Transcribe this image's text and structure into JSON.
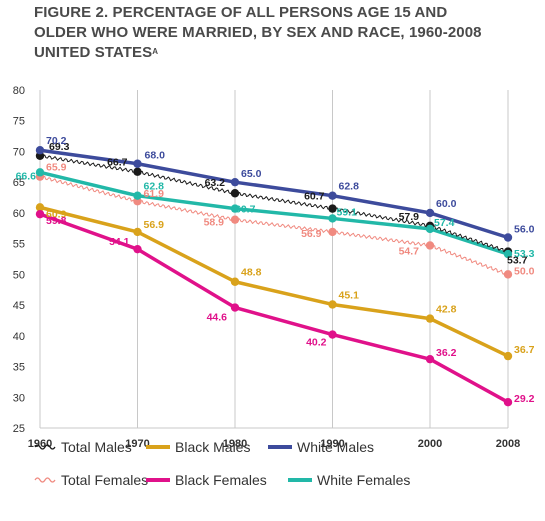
{
  "figure": {
    "title_line1": "FIGURE 2.  PERCENTAGE OF ALL PERSONS AGE 15 AND",
    "title_line2": "OLDER WHO WERE MARRIED, BY SEX AND RACE, 1960-2008",
    "title_line3": "UNITED STATES",
    "title_superscript": "A"
  },
  "chart_data": {
    "type": "line",
    "title": "FIGURE 2.  PERCENTAGE OF ALL PERSONS AGE 15 AND OLDER WHO WERE MARRIED, BY SEX AND RACE, 1960-2008 UNITED STATES",
    "xlabel": "",
    "ylabel": "",
    "x": [
      1960,
      1970,
      1980,
      1990,
      2000,
      2008
    ],
    "ylim": [
      25,
      80
    ],
    "yticks": [
      25,
      30,
      35,
      40,
      45,
      50,
      55,
      60,
      65,
      70,
      75,
      80
    ],
    "grid": "vertical",
    "legend_position": "bottom",
    "series": [
      {
        "name": "Total Males",
        "color": "#1a1a1a",
        "style": "wavy",
        "values": [
          69.3,
          66.7,
          63.2,
          60.7,
          57.9,
          53.7
        ],
        "labels": [
          "69.3",
          "66.7",
          "63.2",
          "60.7",
          "57.9",
          "53.7"
        ]
      },
      {
        "name": "Black Males",
        "color": "#d9a21b",
        "style": "solid",
        "values": [
          60.9,
          56.9,
          48.8,
          45.1,
          42.8,
          36.7
        ],
        "labels": [
          "60.9",
          "56.9",
          "48.8",
          "45.1",
          "42.8",
          "36.7"
        ]
      },
      {
        "name": "White Males",
        "color": "#3d4b9c",
        "style": "solid",
        "values": [
          70.2,
          68.0,
          65.0,
          62.8,
          60.0,
          56.0
        ],
        "labels": [
          "70.2",
          "68.0",
          "65.0",
          "62.8",
          "60.0",
          "56.0"
        ]
      },
      {
        "name": "Total Females",
        "color": "#f08a80",
        "style": "wavy",
        "values": [
          65.9,
          61.9,
          58.9,
          56.9,
          54.7,
          50.0
        ],
        "labels": [
          "65.9",
          "61.9",
          "58.9",
          "56.9",
          "54.7",
          "50.0"
        ]
      },
      {
        "name": "Black Females",
        "color": "#e0118a",
        "style": "solid",
        "values": [
          59.8,
          54.1,
          44.6,
          40.2,
          36.2,
          29.2
        ],
        "labels": [
          "59.8",
          "54.1",
          "44.6",
          "40.2",
          "36.2",
          "29.2"
        ]
      },
      {
        "name": "White Females",
        "color": "#22b8a8",
        "style": "solid",
        "values": [
          66.6,
          62.8,
          60.7,
          59.1,
          57.4,
          53.3
        ],
        "labels": [
          "66.6",
          "62.8",
          "60.7",
          "59.1",
          "57.4",
          "53.3"
        ]
      }
    ]
  }
}
